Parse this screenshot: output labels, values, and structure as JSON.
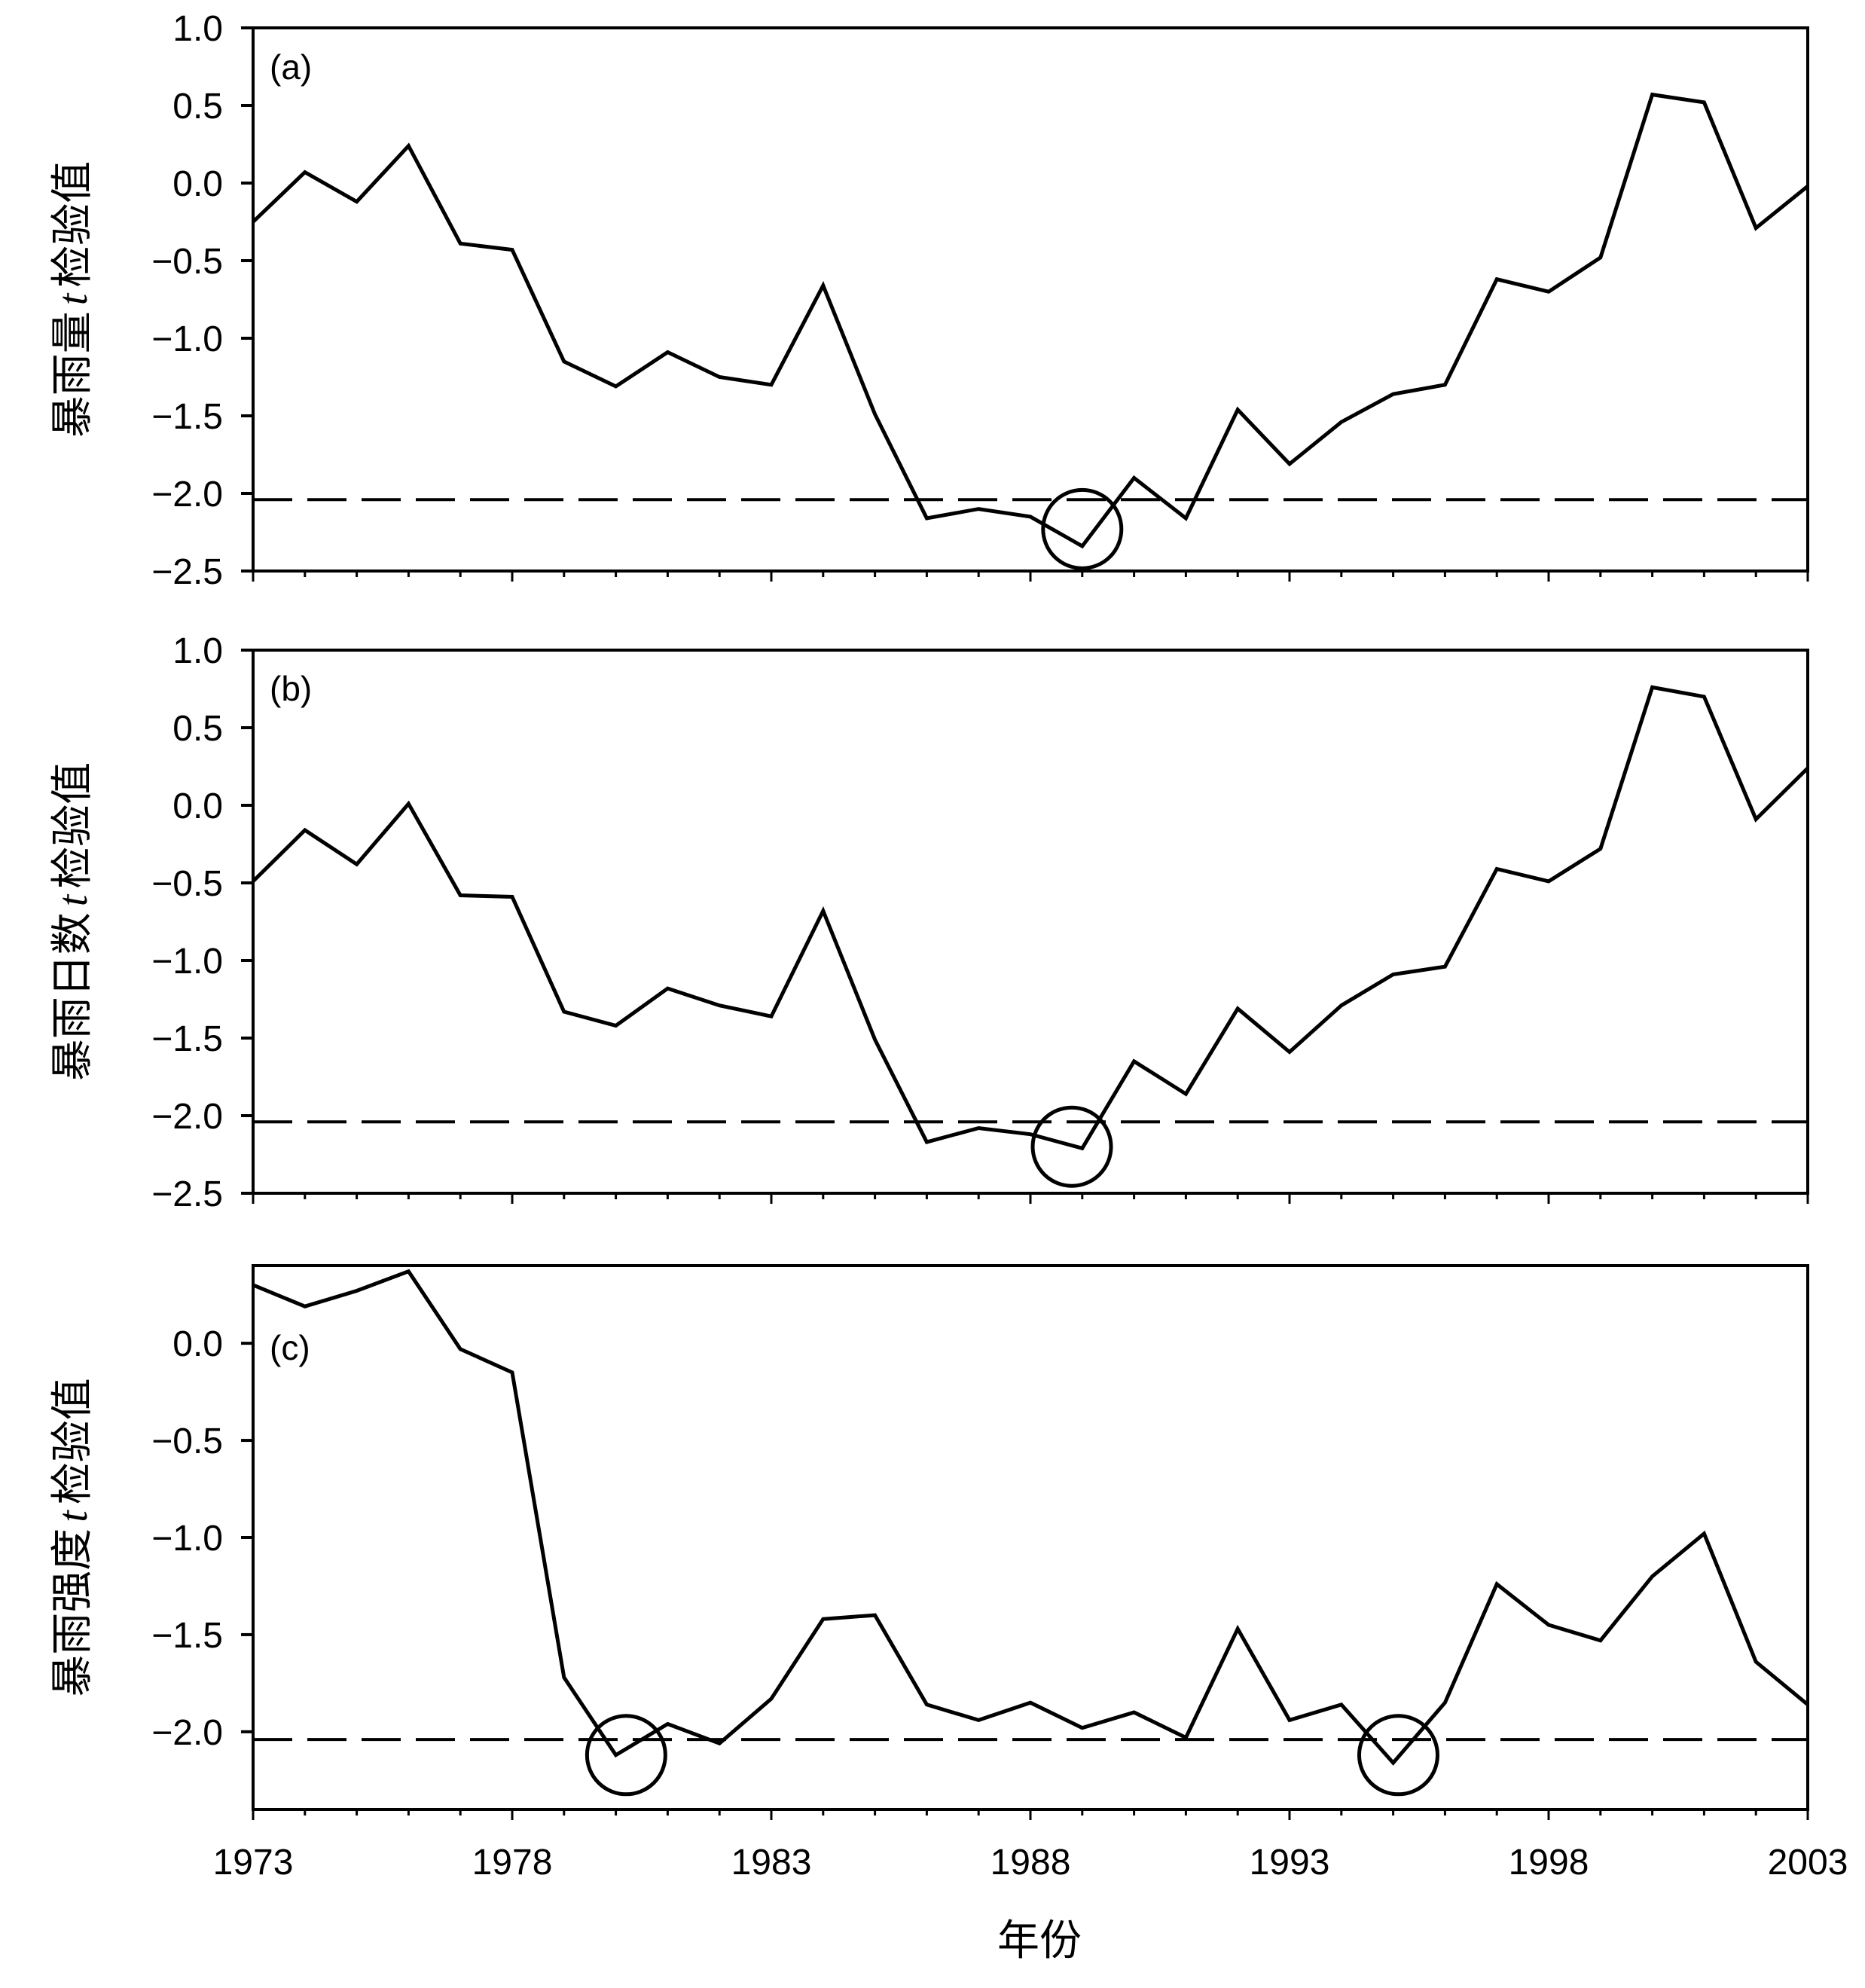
{
  "chart_data": [
    {
      "type": "line",
      "panel_label": "(a)",
      "ylabel_pre": "暴雨量",
      "ylabel_t": "t",
      "ylabel_post": "检验值",
      "ylim": [
        -2.5,
        1.0
      ],
      "yticks": [
        "1.0",
        "0.5",
        "0.0",
        "−0.5",
        "−1.0",
        "−1.5",
        "−2.0",
        "−2.5"
      ],
      "ytick_values": [
        1.0,
        0.5,
        0.0,
        -0.5,
        -1.0,
        -1.5,
        -2.0,
        -2.5
      ],
      "xlim": [
        1973,
        2003
      ],
      "x": [
        1973,
        1974,
        1975,
        1976,
        1977,
        1978,
        1979,
        1980,
        1981,
        1982,
        1983,
        1984,
        1985,
        1986,
        1987,
        1988,
        1989,
        1990,
        1991,
        1992,
        1993,
        1994,
        1995,
        1996,
        1997,
        1998,
        1999,
        2000,
        2001,
        2002,
        2003
      ],
      "values": [
        -0.25,
        0.07,
        -0.12,
        0.24,
        -0.39,
        -0.43,
        -1.15,
        -1.31,
        -1.09,
        -1.25,
        -1.3,
        -0.66,
        -1.49,
        -2.16,
        -2.1,
        -2.15,
        -2.34,
        -1.9,
        -2.16,
        -1.46,
        -1.81,
        -1.54,
        -1.36,
        -1.3,
        -0.62,
        -0.7,
        -0.48,
        0.57,
        0.52,
        -0.29,
        -0.02
      ],
      "threshold": -2.04,
      "circled": [
        {
          "x": 1989,
          "y": -2.23
        }
      ]
    },
    {
      "type": "line",
      "panel_label": "(b)",
      "ylabel_pre": "暴雨日数",
      "ylabel_t": "t",
      "ylabel_post": "检验值",
      "ylim": [
        -2.5,
        1.0
      ],
      "yticks": [
        "1.0",
        "0.5",
        "0.0",
        "−0.5",
        "−1.0",
        "−1.5",
        "−2.0",
        "−2.5"
      ],
      "ytick_values": [
        1.0,
        0.5,
        0.0,
        -0.5,
        -1.0,
        -1.5,
        -2.0,
        -2.5
      ],
      "xlim": [
        1973,
        2003
      ],
      "x": [
        1973,
        1974,
        1975,
        1976,
        1977,
        1978,
        1979,
        1980,
        1981,
        1982,
        1983,
        1984,
        1985,
        1986,
        1987,
        1988,
        1989,
        1990,
        1991,
        1992,
        1993,
        1994,
        1995,
        1996,
        1997,
        1998,
        1999,
        2000,
        2001,
        2002,
        2003
      ],
      "values": [
        -0.49,
        -0.16,
        -0.38,
        0.01,
        -0.58,
        -0.59,
        -1.33,
        -1.42,
        -1.18,
        -1.29,
        -1.36,
        -0.68,
        -1.51,
        -2.17,
        -2.08,
        -2.12,
        -2.21,
        -1.65,
        -1.86,
        -1.31,
        -1.59,
        -1.29,
        -1.09,
        -1.04,
        -0.41,
        -0.49,
        -0.28,
        0.76,
        0.7,
        -0.09,
        0.24
      ],
      "threshold": -2.04,
      "circled": [
        {
          "x": 1988.8,
          "y": -2.2
        }
      ]
    },
    {
      "type": "line",
      "panel_label": "(c)",
      "ylabel_pre": "暴雨强度",
      "ylabel_t": "t",
      "ylabel_post": "检验值",
      "ylim": [
        -2.4,
        0.4
      ],
      "yticks": [
        "0.0",
        "−0.5",
        "−1.0",
        "−1.5",
        "−2.0"
      ],
      "ytick_values": [
        0.0,
        -0.5,
        -1.0,
        -1.5,
        -2.0
      ],
      "xlim": [
        1973,
        2003
      ],
      "x": [
        1973,
        1974,
        1975,
        1976,
        1977,
        1978,
        1979,
        1980,
        1981,
        1982,
        1983,
        1984,
        1985,
        1986,
        1987,
        1988,
        1989,
        1990,
        1991,
        1992,
        1993,
        1994,
        1995,
        1996,
        1997,
        1998,
        1999,
        2000,
        2001,
        2002,
        2003
      ],
      "values": [
        0.3,
        0.19,
        0.27,
        0.37,
        -0.03,
        -0.15,
        -1.72,
        -2.12,
        -1.96,
        -2.06,
        -1.83,
        -1.42,
        -1.4,
        -1.86,
        -1.94,
        -1.85,
        -1.98,
        -1.9,
        -2.03,
        -1.47,
        -1.94,
        -1.86,
        -2.16,
        -1.85,
        -1.24,
        -1.45,
        -1.53,
        -1.2,
        -0.98,
        -1.64,
        -1.86
      ],
      "threshold": -2.04,
      "circled": [
        {
          "x": 1980.2,
          "y": -2.12
        },
        {
          "x": 1995.1,
          "y": -2.12
        }
      ]
    }
  ],
  "x_ticks": [
    "1973",
    "1978",
    "1983",
    "1988",
    "1993",
    "1998",
    "2003"
  ],
  "x_tick_values": [
    1973,
    1978,
    1983,
    1988,
    1993,
    1998,
    2003
  ],
  "xlabel": "年份"
}
